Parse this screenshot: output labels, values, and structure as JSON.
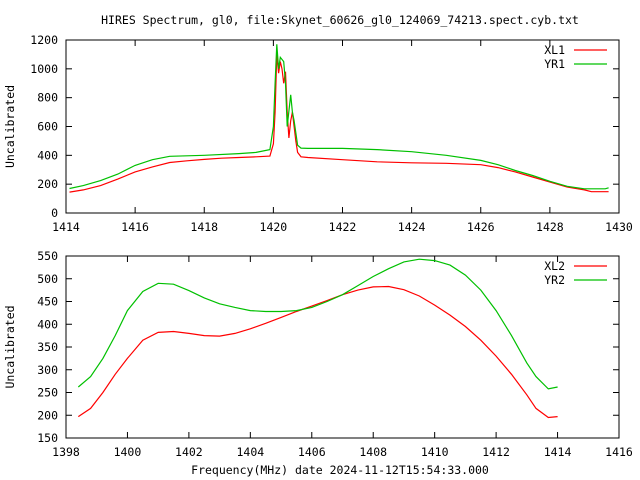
{
  "chart_data": [
    {
      "type": "line",
      "title": "HIRES Spectrum, gl0, file:Skynet_60626_gl0_124069_74213.spect.cyb.txt",
      "xlabel": "",
      "ylabel": "Uncalibrated",
      "xlim": [
        1414,
        1430
      ],
      "ylim": [
        0,
        1200
      ],
      "xticks": [
        "1414",
        "1416",
        "1418",
        "1420",
        "1422",
        "1424",
        "1426",
        "1428",
        "1430"
      ],
      "yticks": [
        "0",
        "200",
        "400",
        "600",
        "800",
        "1000",
        "1200"
      ],
      "grid": false,
      "legend": "top-right",
      "series": [
        {
          "name": "XL1",
          "color": "#ff0000",
          "x": [
            1414.1,
            1414.5,
            1415,
            1415.5,
            1416,
            1416.5,
            1417,
            1417.5,
            1418,
            1418.5,
            1419,
            1419.5,
            1419.9,
            1420.0,
            1420.05,
            1420.1,
            1420.15,
            1420.2,
            1420.25,
            1420.3,
            1420.35,
            1420.4,
            1420.45,
            1420.5,
            1420.55,
            1420.6,
            1420.65,
            1420.7,
            1420.8,
            1421,
            1422,
            1423,
            1424,
            1425,
            1426,
            1426.5,
            1427,
            1427.5,
            1428,
            1428.5,
            1429,
            1429.2,
            1429.7
          ],
          "y": [
            145,
            160,
            190,
            235,
            285,
            320,
            350,
            362,
            372,
            380,
            385,
            390,
            395,
            480,
            700,
            1100,
            970,
            1050,
            1000,
            900,
            980,
            700,
            520,
            640,
            700,
            600,
            500,
            420,
            390,
            385,
            370,
            355,
            348,
            345,
            335,
            315,
            285,
            250,
            215,
            180,
            160,
            148,
            148
          ]
        },
        {
          "name": "YR1",
          "color": "#00c000",
          "x": [
            1414.1,
            1414.5,
            1415,
            1415.5,
            1416,
            1416.5,
            1417,
            1418,
            1419,
            1419.5,
            1419.9,
            1420.0,
            1420.05,
            1420.1,
            1420.15,
            1420.2,
            1420.3,
            1420.35,
            1420.4,
            1420.5,
            1420.55,
            1420.6,
            1420.7,
            1420.8,
            1421,
            1422,
            1423,
            1424,
            1425,
            1426,
            1426.5,
            1427,
            1427.5,
            1428,
            1428.5,
            1429,
            1429.6,
            1429.7
          ],
          "y": [
            170,
            190,
            225,
            270,
            330,
            370,
            393,
            400,
            412,
            420,
            440,
            600,
            900,
            1170,
            1000,
            1080,
            1050,
            900,
            600,
            820,
            700,
            640,
            470,
            450,
            448,
            448,
            440,
            425,
            400,
            365,
            335,
            295,
            260,
            220,
            185,
            168,
            168,
            175
          ]
        }
      ]
    },
    {
      "type": "line",
      "title": "",
      "xlabel": "Frequency(MHz) date 2024-11-12T15:54:33.000",
      "ylabel": "Uncalibrated",
      "xlim": [
        1398,
        1416
      ],
      "ylim": [
        150,
        550
      ],
      "xticks": [
        "1398",
        "1400",
        "1402",
        "1404",
        "1406",
        "1408",
        "1410",
        "1412",
        "1414",
        "1416"
      ],
      "yticks": [
        "150",
        "200",
        "250",
        "300",
        "350",
        "400",
        "450",
        "500",
        "550"
      ],
      "grid": false,
      "legend": "top-right",
      "series": [
        {
          "name": "XL2",
          "color": "#ff0000",
          "x": [
            1398.4,
            1398.8,
            1399.2,
            1399.6,
            1400,
            1400.5,
            1401,
            1401.5,
            1402,
            1402.5,
            1403,
            1403.5,
            1404,
            1404.5,
            1405,
            1405.5,
            1406,
            1406.5,
            1407,
            1407.5,
            1408,
            1408.5,
            1409,
            1409.5,
            1410,
            1410.5,
            1411,
            1411.5,
            1412,
            1412.5,
            1413,
            1413.3,
            1413.7,
            1414
          ],
          "y": [
            197,
            215,
            250,
            290,
            325,
            365,
            382,
            384,
            380,
            375,
            374,
            380,
            390,
            402,
            415,
            428,
            440,
            452,
            465,
            475,
            482,
            483,
            476,
            462,
            442,
            420,
            395,
            365,
            330,
            290,
            245,
            215,
            195,
            197
          ]
        },
        {
          "name": "YR2",
          "color": "#00c000",
          "x": [
            1398.4,
            1398.8,
            1399.2,
            1399.6,
            1400,
            1400.5,
            1401,
            1401.5,
            1402,
            1402.5,
            1403,
            1403.5,
            1404,
            1404.5,
            1405,
            1405.5,
            1406,
            1406.5,
            1407,
            1407.5,
            1408,
            1408.5,
            1409,
            1409.5,
            1410,
            1410.5,
            1411,
            1411.5,
            1412,
            1412.5,
            1413,
            1413.3,
            1413.7,
            1414
          ],
          "y": [
            262,
            285,
            325,
            375,
            430,
            472,
            490,
            488,
            474,
            458,
            445,
            437,
            430,
            428,
            428,
            430,
            437,
            450,
            465,
            485,
            505,
            522,
            537,
            543,
            540,
            530,
            508,
            475,
            430,
            375,
            315,
            285,
            258,
            262
          ]
        }
      ]
    }
  ]
}
